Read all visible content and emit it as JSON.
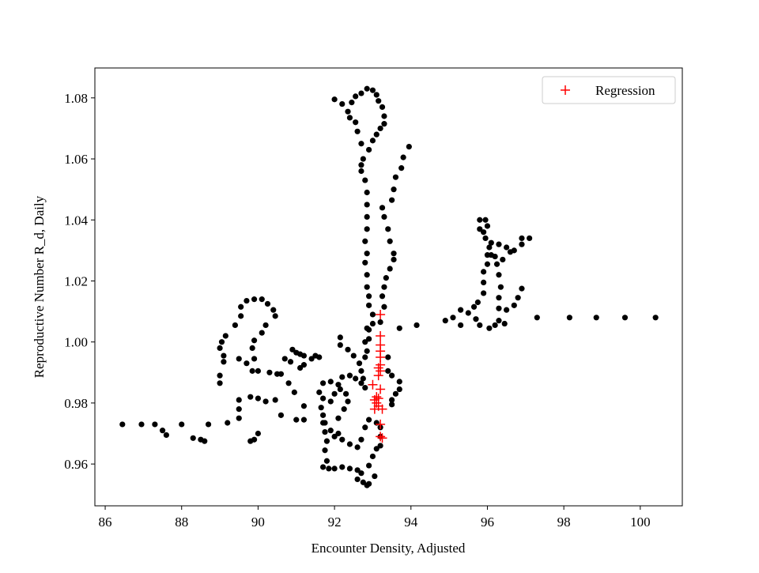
{
  "chart_data": {
    "type": "scatter",
    "xlabel": "Encounter Density, Adjusted",
    "ylabel": "Reproductive Number R_d, Daily",
    "xlim": [
      85.73,
      101.1
    ],
    "ylim": [
      0.9463,
      1.0898
    ],
    "xticks": [
      86,
      88,
      90,
      92,
      94,
      96,
      98,
      100
    ],
    "yticks": [
      0.96,
      0.98,
      {
        "value": 1,
        "label": "1.00"
      },
      1.02,
      1.04,
      1.06,
      1.08
    ],
    "legend_loc": "upper right",
    "series": [
      {
        "color": "#000000",
        "marker": "circle",
        "x": [
          86.45,
          86.95,
          87.3,
          87.5,
          87.6,
          88,
          88.3,
          88.5,
          88.6,
          88.7,
          89.2,
          89.5,
          89.5,
          89.5,
          89.8,
          89.9,
          90,
          89.8,
          90,
          90.2,
          90.45,
          90.6,
          90.95,
          91.2,
          91.2,
          91.7,
          91,
          89,
          89,
          89.1,
          89,
          89.05,
          89.15,
          89.4,
          89.55,
          89.55,
          89.7,
          89.9,
          90.1,
          90.25,
          90.4,
          90.45,
          90.2,
          90.1,
          89.9,
          89.85,
          89.9,
          89.7,
          89.5,
          89.1,
          89.85,
          90,
          90.3,
          90.5,
          90.6,
          90.7,
          90.9,
          91,
          91.1,
          91.2,
          91.4,
          91.5,
          91.6,
          91.2,
          91.1,
          90.85,
          90.8,
          91.6,
          91.7,
          91.65,
          91.7,
          91.75,
          91.75,
          91.8,
          91.75,
          91.8,
          91.7,
          91.85,
          92,
          92.2,
          92.4,
          92.6,
          92.7,
          92.6,
          92.75,
          92.85,
          92.9,
          93.05,
          92.9,
          93,
          93.1,
          93.2,
          93.2,
          93.2,
          93.1,
          92.9,
          92.8,
          92.7,
          92.6,
          92.4,
          92.2,
          92.1,
          92,
          91.9,
          92.1,
          92.25,
          92.35,
          92.3,
          92.15,
          92,
          91.9,
          92.1,
          92.2,
          92.4,
          92.55,
          92.7,
          92.8,
          92.75,
          92.7,
          92.65,
          92.8,
          92.85,
          92.8,
          92.9,
          92.9,
          93,
          92.85,
          92.15,
          92.15,
          92.35,
          92.5,
          91.9,
          91.7,
          93.5,
          93.5,
          93.6,
          93.7,
          93.7,
          93.5,
          93.4,
          93.4,
          93,
          92.9,
          92.9,
          92.85,
          92.85,
          92.8,
          92.85,
          92.8,
          92.85,
          92.85,
          92.85,
          92.85,
          92.8,
          92.7,
          92.7,
          92.75,
          92.9,
          93,
          93.1,
          93.2,
          93.3,
          93.3,
          93.25,
          93.15,
          93.1,
          93,
          92.85,
          92.7,
          92.55,
          92.45,
          92.35,
          92.4,
          92.55,
          92.6,
          92.7,
          92.2,
          92,
          93.25,
          93.3,
          93.4,
          93.45,
          93.55,
          93.55,
          93.45,
          93.35,
          93.3,
          93.25,
          93.3,
          93.5,
          93.55,
          93.6,
          93.75,
          93.8,
          93.95,
          93.2,
          93.7,
          94.15,
          94.9,
          95.1,
          95.3,
          95.5,
          95.65,
          95.75,
          95.9,
          95.9,
          95.9,
          96,
          96,
          96.05,
          95.95,
          95.8,
          95.8,
          95.95,
          96,
          95.9,
          96.1,
          96.3,
          96.5,
          96.7,
          96.9,
          97.1,
          96.9,
          96.6,
          96.4,
          96.2,
          96.1,
          96.25,
          96.3,
          96.35,
          96.3,
          96.3,
          96.5,
          96.7,
          96.8,
          96.9,
          96.3,
          96.2,
          96.05,
          95.8,
          95.7,
          96.45,
          95.3,
          97.3,
          98.15,
          98.85,
          99.6,
          100.4
        ],
        "values": [
          0.973,
          0.973,
          0.973,
          0.971,
          0.9695,
          0.973,
          0.9685,
          0.968,
          0.9675,
          0.973,
          0.9735,
          0.975,
          0.978,
          0.981,
          0.9675,
          0.968,
          0.97,
          0.982,
          0.9815,
          0.9805,
          0.981,
          0.976,
          0.9835,
          0.9745,
          0.979,
          0.9735,
          0.9745,
          0.9865,
          0.989,
          0.9935,
          0.998,
          1.0,
          1.002,
          1.0055,
          1.0085,
          1.0115,
          1.0135,
          1.014,
          1.014,
          1.0125,
          1.0105,
          1.0085,
          1.0055,
          1.003,
          1.0005,
          0.998,
          0.9945,
          0.993,
          0.9945,
          0.9955,
          0.9905,
          0.9905,
          0.99,
          0.9895,
          0.9895,
          0.9945,
          0.9975,
          0.9965,
          0.996,
          0.9955,
          0.9945,
          0.9955,
          0.995,
          0.9925,
          0.9915,
          0.9935,
          0.9865,
          0.9835,
          0.9815,
          0.9785,
          0.976,
          0.9735,
          0.9705,
          0.9675,
          0.9645,
          0.961,
          0.959,
          0.9585,
          0.9585,
          0.959,
          0.9585,
          0.958,
          0.957,
          0.955,
          0.954,
          0.953,
          0.9535,
          0.956,
          0.9595,
          0.9625,
          0.965,
          0.966,
          0.969,
          0.972,
          0.9735,
          0.9745,
          0.972,
          0.968,
          0.9655,
          0.9665,
          0.968,
          0.97,
          0.969,
          0.971,
          0.975,
          0.978,
          0.9805,
          0.983,
          0.9845,
          0.983,
          0.9805,
          0.986,
          0.9885,
          0.989,
          0.988,
          0.9865,
          0.985,
          0.988,
          0.9905,
          0.993,
          0.995,
          0.997,
          1.0,
          1.001,
          1.004,
          1.006,
          1.0045,
          1.0015,
          0.999,
          0.9975,
          0.9955,
          0.987,
          0.9865,
          0.9795,
          0.981,
          0.983,
          0.9845,
          0.987,
          0.989,
          0.9905,
          0.995,
          1.009,
          1.012,
          1.015,
          1.018,
          1.022,
          1.026,
          1.029,
          1.033,
          1.037,
          1.041,
          1.045,
          1.049,
          1.053,
          1.056,
          1.058,
          1.06,
          1.063,
          1.066,
          1.068,
          1.07,
          1.0715,
          1.074,
          1.077,
          1.079,
          1.081,
          1.0825,
          1.083,
          1.0815,
          1.0805,
          1.0785,
          1.0755,
          1.0735,
          1.072,
          1.069,
          1.065,
          1.078,
          1.0795,
          1.044,
          1.041,
          1.037,
          1.033,
          1.029,
          1.027,
          1.024,
          1.021,
          1.018,
          1.015,
          1.0115,
          1.0465,
          1.05,
          1.054,
          1.057,
          1.0605,
          1.064,
          1.0065,
          1.0045,
          1.0055,
          1.007,
          1.008,
          1.0105,
          1.0095,
          1.0115,
          1.013,
          1.016,
          1.0195,
          1.023,
          1.0255,
          1.0285,
          1.031,
          1.034,
          1.037,
          1.04,
          1.04,
          1.038,
          1.036,
          1.0325,
          1.032,
          1.031,
          1.03,
          1.032,
          1.034,
          1.034,
          1.0295,
          1.027,
          1.028,
          1.0285,
          1.0255,
          1.022,
          1.018,
          1.0145,
          1.011,
          1.0105,
          1.012,
          1.0145,
          1.0175,
          1.007,
          1.0055,
          1.0045,
          1.0055,
          1.0075,
          1.006,
          1.0055,
          1.008,
          1.008,
          1.008,
          1.008,
          1.008
        ]
      },
      {
        "name": "Regression",
        "color": "#ff0000",
        "marker": "plus",
        "x": [
          93.2,
          93.2,
          93.2,
          93.2,
          93.2,
          93.2,
          93.15,
          93.2,
          93.15,
          93,
          93.2,
          93.1,
          93.05,
          93.15,
          93.1,
          93.15,
          93.05,
          93.25,
          93.2,
          93.2,
          93.25
        ],
        "values": [
          1.009,
          1.002,
          0.999,
          0.997,
          0.995,
          0.9925,
          0.9915,
          0.9905,
          0.989,
          0.986,
          0.9845,
          0.982,
          0.981,
          0.9815,
          0.98,
          0.979,
          0.978,
          0.978,
          0.973,
          0.969,
          0.9685
        ]
      }
    ]
  }
}
